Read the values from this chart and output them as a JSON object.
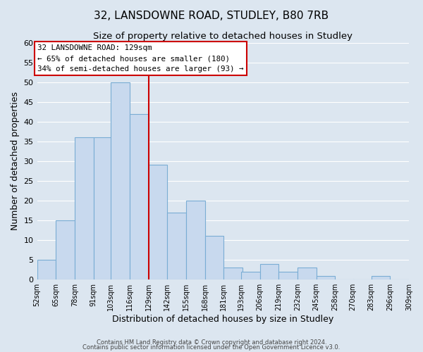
{
  "title": "32, LANSDOWNE ROAD, STUDLEY, B80 7RB",
  "subtitle": "Size of property relative to detached houses in Studley",
  "xlabel": "Distribution of detached houses by size in Studley",
  "ylabel": "Number of detached properties",
  "footnote1": "Contains HM Land Registry data © Crown copyright and database right 2024.",
  "footnote2": "Contains public sector information licensed under the Open Government Licence v3.0.",
  "bar_edges": [
    52,
    65,
    78,
    91,
    103,
    116,
    129,
    142,
    155,
    168,
    181,
    193,
    206,
    219,
    232,
    245,
    258,
    270,
    283,
    296,
    309
  ],
  "bar_heights": [
    5,
    15,
    36,
    36,
    50,
    42,
    29,
    17,
    20,
    11,
    3,
    2,
    4,
    2,
    3,
    1,
    0,
    0,
    1,
    0
  ],
  "tick_labels": [
    "52sqm",
    "65sqm",
    "78sqm",
    "91sqm",
    "103sqm",
    "116sqm",
    "129sqm",
    "142sqm",
    "155sqm",
    "168sqm",
    "181sqm",
    "193sqm",
    "206sqm",
    "219sqm",
    "232sqm",
    "245sqm",
    "258sqm",
    "270sqm",
    "283sqm",
    "296sqm",
    "309sqm"
  ],
  "bar_facecolor": "#c8d9ee",
  "bar_edgecolor": "#7aadd4",
  "red_line_x": 129,
  "red_line_color": "#cc0000",
  "annotation_title": "32 LANSDOWNE ROAD: 129sqm",
  "annotation_line1": "← 65% of detached houses are smaller (180)",
  "annotation_line2": "34% of semi-detached houses are larger (93) →",
  "annotation_box_edgecolor": "#cc0000",
  "annotation_box_facecolor": "#ffffff",
  "ylim": [
    0,
    60
  ],
  "yticks": [
    0,
    5,
    10,
    15,
    20,
    25,
    30,
    35,
    40,
    45,
    50,
    55,
    60
  ],
  "grid_color": "#ffffff",
  "background_color": "#dce6f0",
  "title_fontsize": 11,
  "subtitle_fontsize": 9.5
}
